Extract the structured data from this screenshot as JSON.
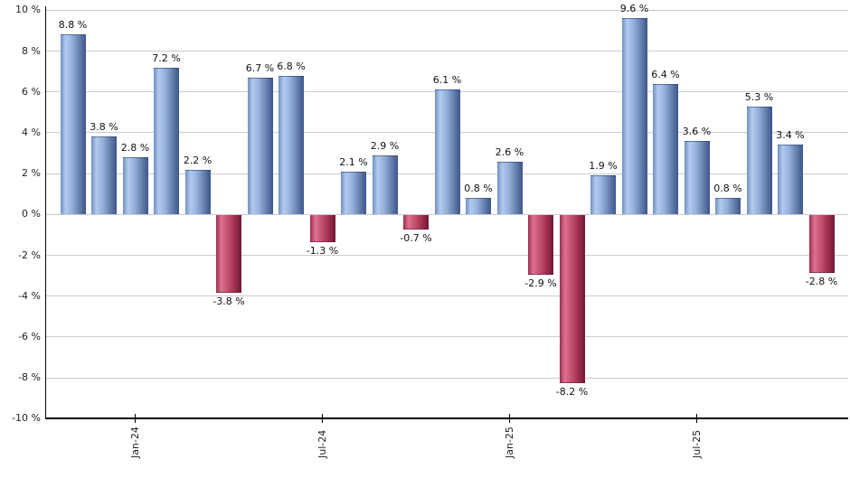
{
  "chart_data": {
    "type": "bar",
    "title": "",
    "xlabel": "",
    "ylabel": "",
    "unit": "%",
    "ylim": [
      -10,
      10
    ],
    "grid": true,
    "legend_position": "none",
    "values": [
      8.8,
      3.8,
      2.8,
      7.2,
      2.2,
      -3.8,
      6.7,
      6.8,
      -1.3,
      2.1,
      2.9,
      -0.7,
      6.1,
      0.8,
      2.6,
      -2.9,
      -8.2,
      1.9,
      9.6,
      6.4,
      3.6,
      0.8,
      5.3,
      3.4,
      -2.8
    ],
    "bar_value_labels": [
      "8.8 %",
      "3.8 %",
      "2.8 %",
      "7.2 %",
      "2.2 %",
      "-3.8 %",
      "6.7 %",
      "6.8 %",
      "-1.3 %",
      "2.1 %",
      "2.9 %",
      "-0.7 %",
      "6.1 %",
      "0.8 %",
      "2.6 %",
      "-2.9 %",
      "-8.2 %",
      "1.9 %",
      "9.6 %",
      "6.4 %",
      "3.6 %",
      "0.8 %",
      "5.3 %",
      "3.4 %",
      "-2.8 %"
    ],
    "x_ticks": [
      {
        "bar_index": 2,
        "label": "Jan-24"
      },
      {
        "bar_index": 8,
        "label": "Jul-24"
      },
      {
        "bar_index": 14,
        "label": "Jan-25"
      },
      {
        "bar_index": 20,
        "label": "Jul-25"
      }
    ],
    "y_ticks": [
      {
        "value": 10,
        "label": "10 %"
      },
      {
        "value": 8,
        "label": "8 %"
      },
      {
        "value": 6,
        "label": "6 %"
      },
      {
        "value": 4,
        "label": "4 %"
      },
      {
        "value": 2,
        "label": "2 %"
      },
      {
        "value": 0,
        "label": "0 %"
      },
      {
        "value": -2,
        "label": "-2 %"
      },
      {
        "value": -4,
        "label": "-4 %"
      },
      {
        "value": -6,
        "label": "-6 %"
      },
      {
        "value": -8,
        "label": "-8 %"
      },
      {
        "value": -10,
        "label": "-10 %"
      }
    ],
    "colors": {
      "positive_bar_gradient": [
        "#6f90c2 0%",
        "#b3caee 20%",
        "#96b0dc 45%",
        "#6a84b2 72%",
        "#3d558b 100%"
      ],
      "negative_bar_gradient": [
        "#9c2c4c 0%",
        "#dd7190 20%",
        "#c45270 45%",
        "#a43050 72%",
        "#6f1a33 100%"
      ],
      "gridline": "#cccccc",
      "axis_line": "#000000",
      "value_label_text": "#111111",
      "axis_label_text": "#222222",
      "background": "#ffffff"
    }
  }
}
